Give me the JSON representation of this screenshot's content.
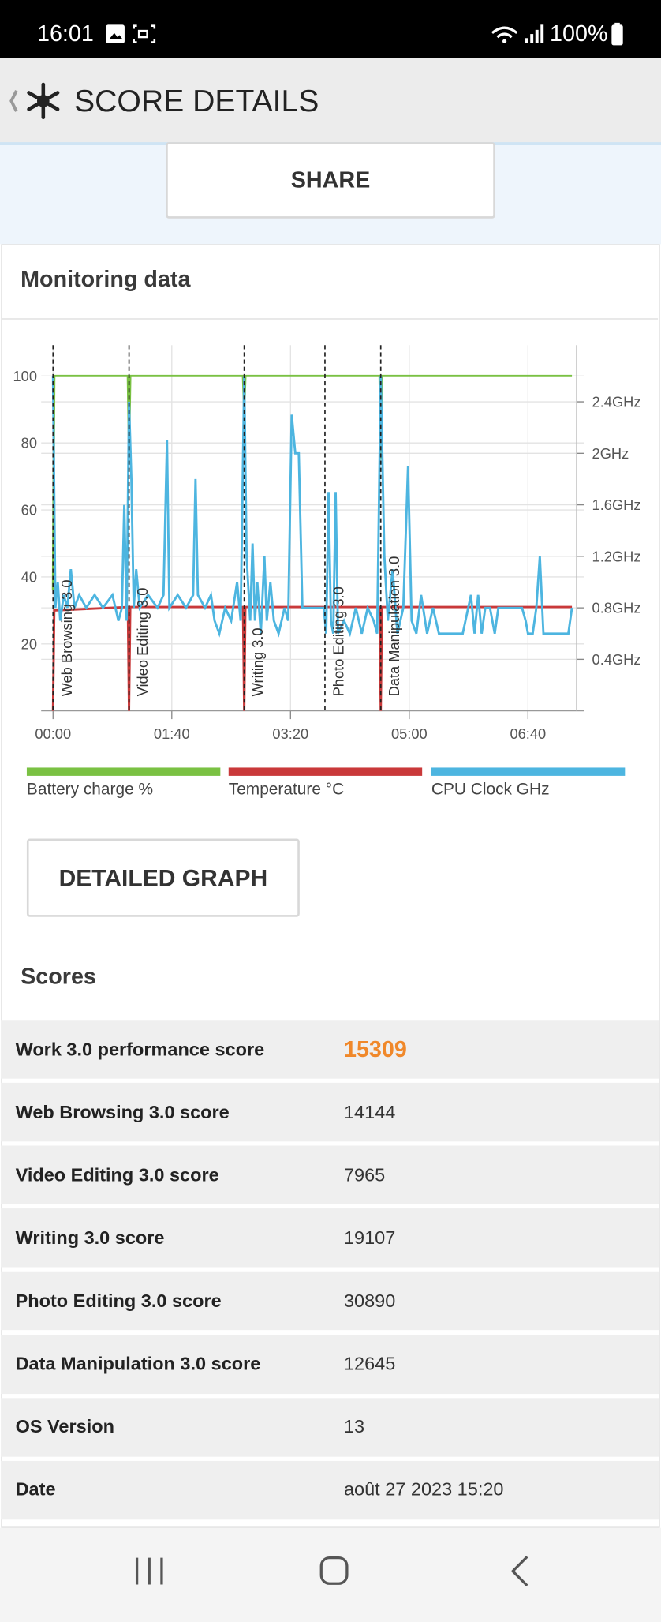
{
  "status_bar": {
    "time": "16:01",
    "battery": "100%"
  },
  "header": {
    "title": "SCORE DETAILS"
  },
  "share_button": "SHARE",
  "monitoring": {
    "title": "Monitoring data",
    "button": "DETAILED GRAPH"
  },
  "chart_data": {
    "type": "line",
    "xlim": [
      -10,
      447
    ],
    "xticks": [
      {
        "value": 0,
        "label": "00:00"
      },
      {
        "value": 100,
        "label": "01:40"
      },
      {
        "value": 200,
        "label": "03:20"
      },
      {
        "value": 300,
        "label": "05:00"
      },
      {
        "value": 400,
        "label": "06:40"
      }
    ],
    "ylim": [
      0,
      109.2
    ],
    "yticks": [
      20,
      40,
      60,
      80,
      100
    ],
    "y2lim": [
      0,
      2.84
    ],
    "y2ticks": [
      {
        "value": 0.4,
        "label": "0.4GHz"
      },
      {
        "value": 0.8,
        "label": "0.8GHz"
      },
      {
        "value": 1.2,
        "label": "1.2GHz"
      },
      {
        "value": 1.6,
        "label": "1.6GHz"
      },
      {
        "value": 2,
        "label": "2GHz"
      },
      {
        "value": 2.4,
        "label": "2.4GHz"
      }
    ],
    "grid": true,
    "markers": [
      {
        "x": 0,
        "label": "Web Browsing 3.0"
      },
      {
        "x": 64,
        "label": "Video Editing 3.0"
      },
      {
        "x": 161,
        "label": "Writing 3.0"
      },
      {
        "x": 229,
        "label": "Photo Editing 3.0"
      },
      {
        "x": 276,
        "label": "Data Manipulation 3.0"
      }
    ],
    "series": [
      {
        "name": "Battery charge %",
        "color": "#7ac143",
        "axis": "y",
        "x": [
          0,
          1,
          63,
          64,
          65,
          160,
          161,
          162,
          275,
          276,
          277,
          437
        ],
        "values": [
          36,
          100,
          100,
          78,
          100,
          100,
          90,
          100,
          100,
          75,
          100,
          100
        ]
      },
      {
        "name": "Temperature °C",
        "color": "#c9393a",
        "axis": "y",
        "x": [
          0,
          1,
          63,
          64,
          65,
          160,
          161,
          162,
          275,
          276,
          277,
          437
        ],
        "values": [
          0,
          30,
          31,
          0,
          31,
          31,
          0,
          31,
          31,
          0,
          31,
          31
        ]
      },
      {
        "name": "CPU Clock GHz",
        "color": "#4db5e0",
        "axis": "y2",
        "x": [
          0,
          2,
          4,
          6,
          9,
          12,
          15,
          18,
          22,
          28,
          35,
          42,
          50,
          55,
          58,
          60,
          62,
          64,
          66,
          68,
          70,
          73,
          80,
          88,
          93,
          96,
          98,
          105,
          112,
          118,
          120,
          122,
          128,
          133,
          136,
          140,
          145,
          150,
          155,
          158,
          161,
          163,
          166,
          168,
          170,
          172,
          175,
          178,
          180,
          183,
          186,
          190,
          195,
          198,
          201,
          204,
          207,
          210,
          220,
          228,
          230,
          232,
          234,
          236,
          238,
          240,
          245,
          250,
          255,
          260,
          265,
          270,
          273,
          276,
          279,
          282,
          286,
          290,
          295,
          299,
          302,
          306,
          310,
          315,
          320,
          325,
          330,
          335,
          340,
          345,
          352,
          355,
          358,
          361,
          364,
          368,
          372,
          375,
          385,
          395,
          398,
          400,
          404,
          407,
          410,
          413,
          420,
          425,
          430,
          434,
          437
        ],
        "values": [
          2.6,
          0.8,
          1.0,
          0.7,
          0.9,
          0.8,
          1.1,
          0.8,
          0.9,
          0.8,
          0.9,
          0.8,
          0.9,
          0.7,
          0.8,
          1.6,
          0.7,
          2.4,
          1.8,
          0.8,
          1.1,
          0.8,
          0.9,
          0.8,
          0.9,
          2.1,
          0.8,
          0.9,
          0.8,
          0.9,
          1.8,
          0.9,
          0.8,
          0.9,
          0.7,
          0.6,
          0.8,
          0.7,
          1.0,
          0.7,
          2.6,
          1.2,
          0.7,
          1.3,
          0.7,
          1.0,
          0.6,
          1.2,
          0.7,
          1.0,
          0.7,
          0.6,
          0.8,
          0.7,
          2.3,
          2.0,
          2.0,
          0.8,
          0.8,
          0.8,
          0.6,
          1.7,
          0.7,
          0.6,
          1.7,
          0.6,
          0.7,
          0.6,
          0.8,
          0.6,
          0.8,
          0.7,
          0.6,
          2.6,
          1.2,
          0.7,
          1.1,
          0.6,
          0.8,
          1.9,
          0.7,
          0.6,
          0.9,
          0.6,
          0.8,
          0.6,
          0.6,
          0.6,
          0.6,
          0.6,
          0.9,
          0.6,
          0.9,
          0.6,
          0.8,
          0.8,
          0.6,
          0.8,
          0.8,
          0.8,
          0.7,
          0.6,
          0.6,
          0.8,
          1.2,
          0.6,
          0.6,
          0.6,
          0.6,
          0.6,
          0.8
        ]
      }
    ]
  },
  "scores": {
    "title": "Scores",
    "rows": [
      [
        "Work 3.0 performance score",
        15309
      ],
      [
        "Web Browsing 3.0 score",
        14144
      ],
      [
        "Video Editing 3.0 score",
        7965
      ],
      [
        "Writing 3.0 score",
        19107
      ],
      [
        "Photo Editing 3.0 score",
        30890
      ],
      [
        "Data Manipulation 3.0 score",
        12645
      ],
      [
        "OS Version",
        13
      ],
      [
        "Date",
        "août 27 2023 15:20"
      ]
    ]
  }
}
